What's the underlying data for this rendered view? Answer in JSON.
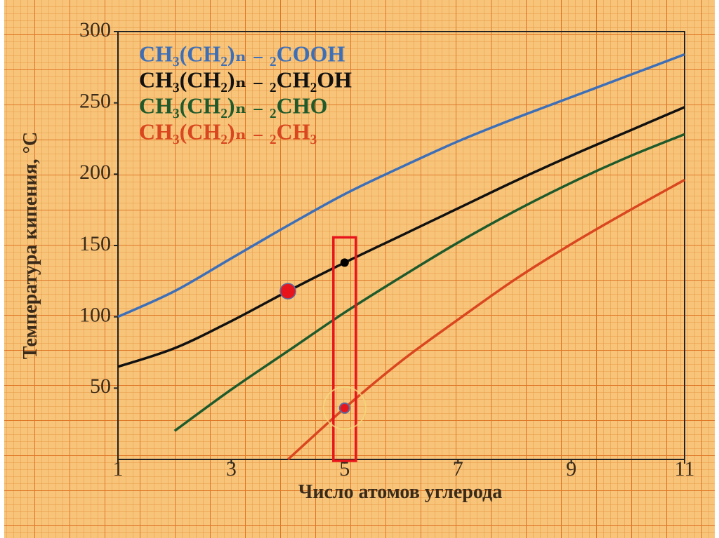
{
  "chart_data": {
    "type": "line",
    "x_label": "Число атомов углерода",
    "y_label": "Температура кипения, °С",
    "x": [
      1,
      2,
      3,
      4,
      5,
      6,
      7,
      8,
      9,
      10,
      11
    ],
    "xlim": [
      1,
      11
    ],
    "xticks": [
      1,
      3,
      5,
      7,
      9,
      11
    ],
    "ylim": [
      0,
      300
    ],
    "yticks": [
      50,
      100,
      150,
      200,
      250,
      300
    ],
    "legend": "upper left",
    "series": [
      {
        "name": "CH₃(CH₂)ₙ ₋ ₂COOH",
        "color": "#3d6fb8",
        "values": [
          100,
          118,
          141,
          164,
          186,
          205,
          223,
          239,
          254,
          269,
          284
        ]
      },
      {
        "name": "CH₃(CH₂)ₙ ₋ ₂CH₂OH",
        "color": "#111111",
        "values": [
          65,
          78,
          97,
          118,
          138,
          157,
          176,
          195,
          213,
          230,
          247
        ]
      },
      {
        "name": "CH₃(CH₂)ₙ ₋ ₂CHO",
        "color": "#1e5a2c",
        "values": [
          null,
          20,
          49,
          76,
          103,
          128,
          152,
          174,
          194,
          212,
          228
        ]
      },
      {
        "name": "CH₃(CH₂)ₙ ₋ ₂CH₃",
        "color": "#d9461f",
        "values": [
          null,
          null,
          null,
          0,
          36,
          69,
          98,
          126,
          151,
          174,
          196
        ]
      }
    ]
  }
}
